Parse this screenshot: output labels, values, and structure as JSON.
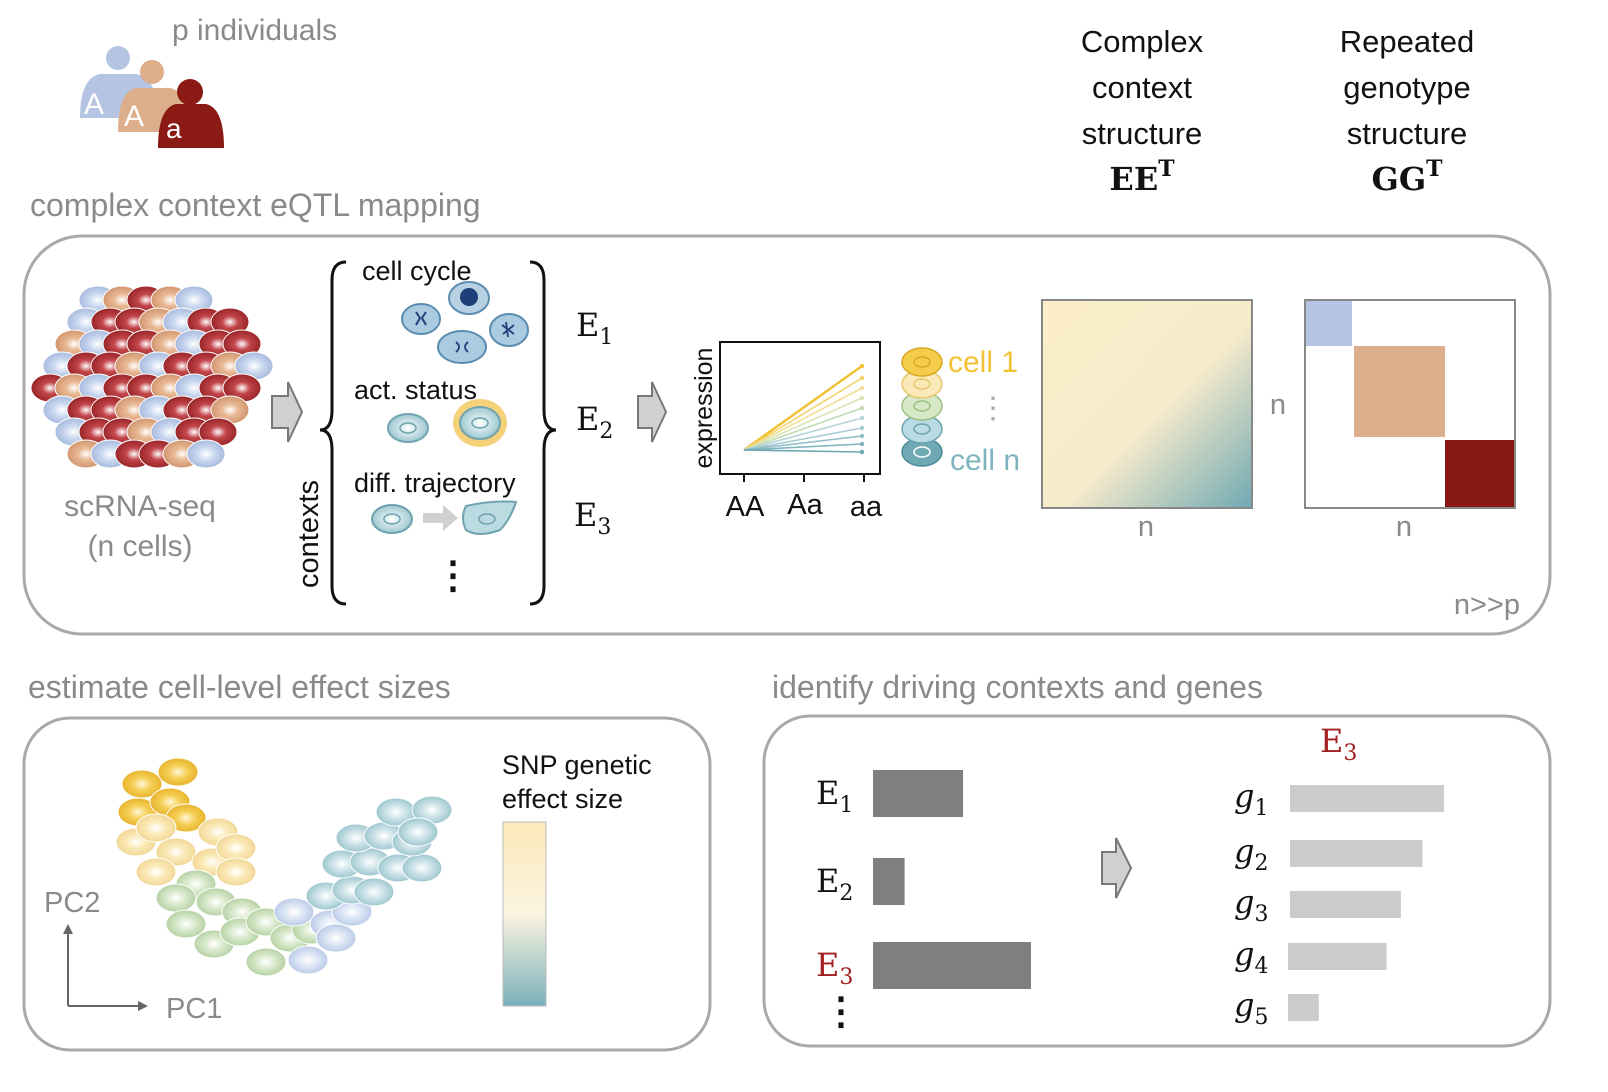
{
  "header": {
    "individuals_label": "p individuals",
    "allele_1": "A",
    "allele_2": "A",
    "allele_3": "a",
    "col1_line1": "Complex",
    "col1_line2": "context",
    "col1_line3": "structure",
    "col1_symbol": "EE",
    "col1_sup": "T",
    "col2_line1": "Repeated",
    "col2_line2": "genotype",
    "col2_line3": "structure",
    "col2_symbol": "GG",
    "col2_sup": "T"
  },
  "mapping": {
    "section_title": "complex context eQTL mapping",
    "scrna_line1": "scRNA-seq",
    "scrna_line2": "(n cells)",
    "contexts_label": "contexts",
    "context_1": "cell cycle",
    "context_2": "act. status",
    "context_3": "diff. trajectory",
    "ellipsis": "⋮",
    "e1": "E",
    "e1_sub": "1",
    "e2": "E",
    "e2_sub": "2",
    "e3": "E",
    "e3_sub": "3",
    "plot_ylabel": "expression",
    "plot_ticks": [
      "AA",
      "Aa",
      "aa"
    ],
    "cell_first": "cell 1",
    "cell_last": "cell n",
    "cell_dots": "⋮",
    "ee_n_label": "n",
    "gg_n_side": "n",
    "gg_n_bottom": "n",
    "ratio_note": "n>>p"
  },
  "effects": {
    "section_title": "estimate cell-level effect sizes",
    "legend_line1": "SNP genetic",
    "legend_line2": "effect size",
    "axis_y": "PC2",
    "axis_x": "PC1"
  },
  "drivers": {
    "section_title": "identify driving contexts and genes",
    "selected_context": "E",
    "selected_context_sub": "3",
    "context_bars": [
      {
        "label": "E",
        "sub": "1",
        "value": 0.57,
        "highlight": false
      },
      {
        "label": "E",
        "sub": "2",
        "value": 0.2,
        "highlight": false
      },
      {
        "label": "E",
        "sub": "3",
        "value": 1.0,
        "highlight": true
      }
    ],
    "context_dots": "⋮",
    "gene_bars": [
      {
        "label": "g",
        "sub": "1",
        "value": 1.0
      },
      {
        "label": "g",
        "sub": "2",
        "value": 0.86
      },
      {
        "label": "g",
        "sub": "3",
        "value": 0.72
      },
      {
        "label": "g",
        "sub": "4",
        "value": 0.64
      },
      {
        "label": "g",
        "sub": "5",
        "value": 0.2
      }
    ]
  },
  "colors": {
    "allele_A_light": "#b4c4e2",
    "allele_A_mid": "#dcae8c",
    "allele_a_dark": "#8b1a14",
    "accent_red": "#a31e1e",
    "yellow": "#f2c235",
    "teal": "#7fb4bf",
    "box_stroke": "#a9a9a9",
    "bar_dark": "#7f7f7f",
    "bar_light": "#cccccc"
  }
}
